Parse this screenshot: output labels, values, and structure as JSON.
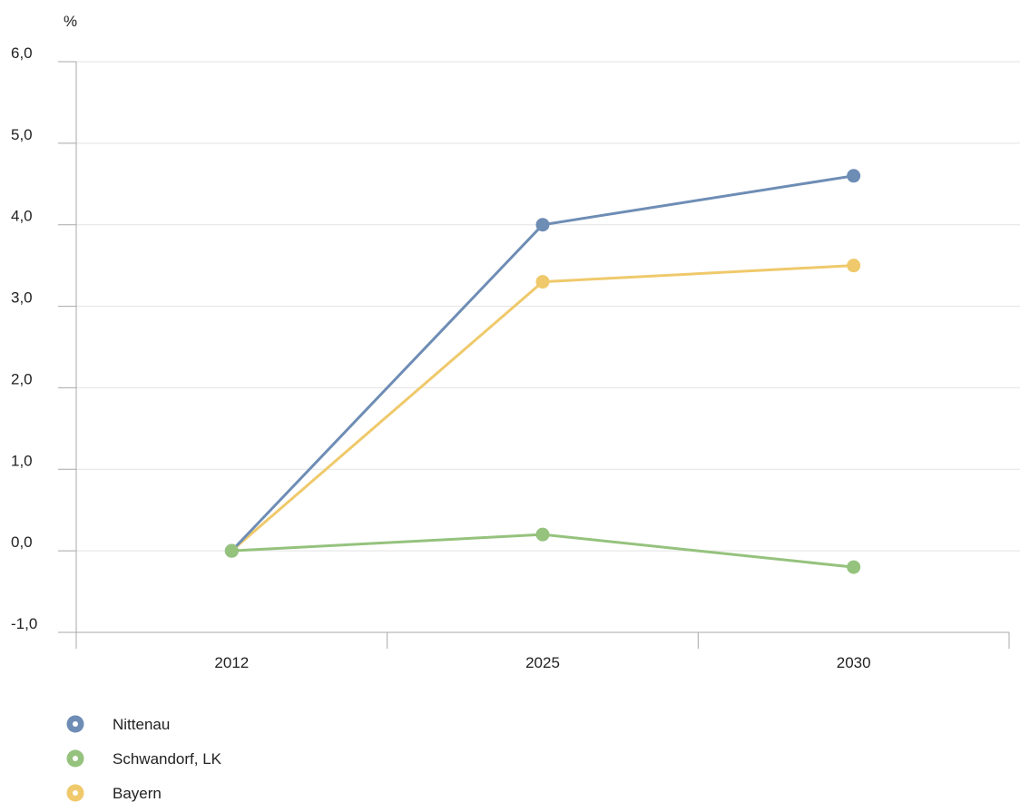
{
  "chart_data": {
    "type": "line",
    "title": "",
    "xlabel": "",
    "ylabel": "%",
    "categories": [
      "2012",
      "2025",
      "2030"
    ],
    "ylim": [
      -1.0,
      6.0
    ],
    "yticks": [
      -1.0,
      0.0,
      1.0,
      2.0,
      3.0,
      4.0,
      5.0,
      6.0
    ],
    "ytick_labels": [
      "-1,0",
      "0,0",
      "1,0",
      "2,0",
      "3,0",
      "4,0",
      "5,0",
      "6,0"
    ],
    "grid": true,
    "legend_position": "bottom-left",
    "series": [
      {
        "name": "Nittenau",
        "color": "#6e8db5",
        "values": [
          0.0,
          4.0,
          4.6
        ]
      },
      {
        "name": "Schwandorf, LK",
        "color": "#95c27d",
        "values": [
          0.0,
          0.2,
          -0.2
        ]
      },
      {
        "name": "Bayern",
        "color": "#efc96b",
        "values": [
          0.0,
          3.3,
          3.5
        ]
      }
    ]
  }
}
